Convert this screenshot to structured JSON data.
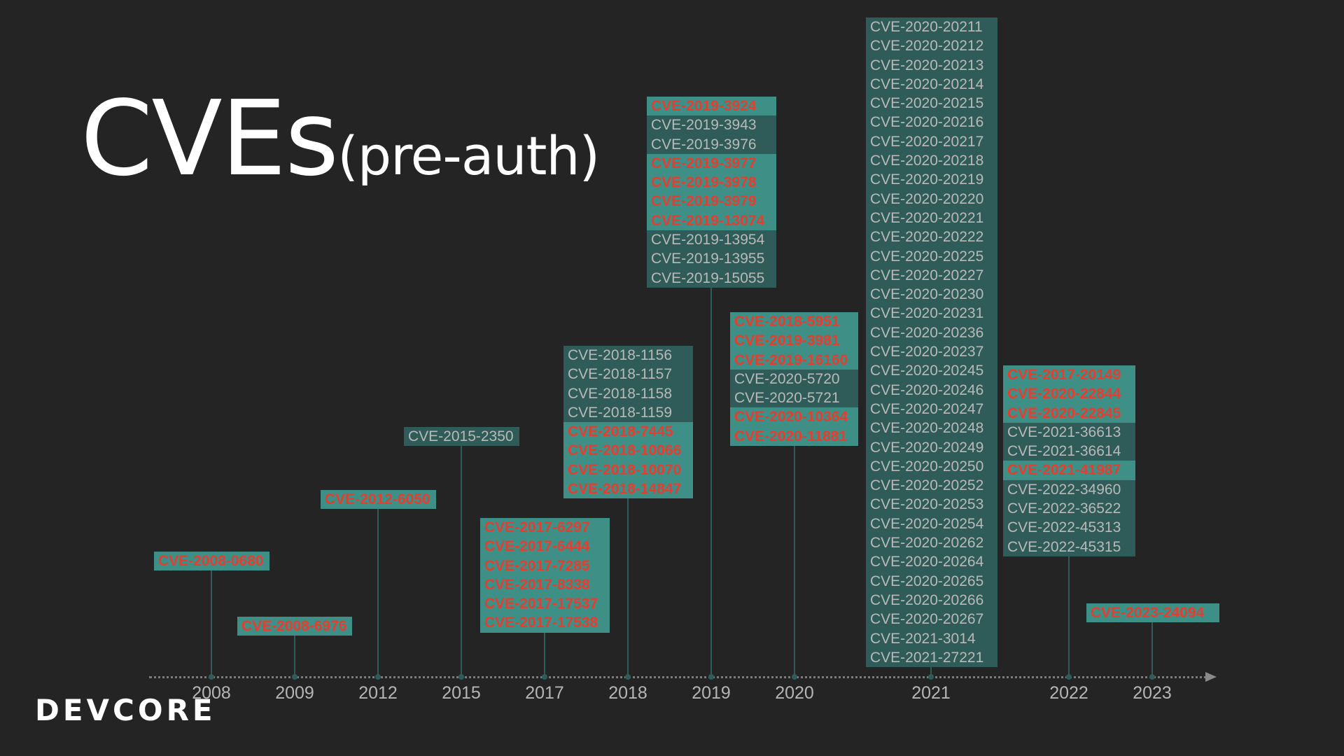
{
  "slide": {
    "title_main": "CVEs",
    "title_sub": "(pre-auth)",
    "logo": "DEVCORE",
    "accent_color": "#e53e30",
    "box_color": "#2f5c58",
    "highlight_box_color": "#3e9086"
  },
  "timeline": [
    {
      "year": "2008",
      "cves": [
        {
          "id": "CVE-2008-0680",
          "critical": true
        }
      ]
    },
    {
      "year": "2009",
      "cves": [
        {
          "id": "CVE-2008-6976",
          "critical": true
        }
      ]
    },
    {
      "year": "2012",
      "cves": [
        {
          "id": "CVE-2012-6050",
          "critical": true
        }
      ]
    },
    {
      "year": "2015",
      "cves": [
        {
          "id": "CVE-2015-2350",
          "critical": false
        }
      ]
    },
    {
      "year": "2017",
      "cves": [
        {
          "id": "CVE-2017-6297",
          "critical": true
        },
        {
          "id": "CVE-2017-6444",
          "critical": true
        },
        {
          "id": "CVE-2017-7285",
          "critical": true
        },
        {
          "id": "CVE-2017-8338",
          "critical": true
        },
        {
          "id": "CVE-2017-17537",
          "critical": true
        },
        {
          "id": "CVE-2017-17538",
          "critical": true
        }
      ]
    },
    {
      "year": "2018",
      "cves": [
        {
          "id": "CVE-2018-1156",
          "critical": false
        },
        {
          "id": "CVE-2018-1157",
          "critical": false
        },
        {
          "id": "CVE-2018-1158",
          "critical": false
        },
        {
          "id": "CVE-2018-1159",
          "critical": false
        },
        {
          "id": "CVE-2018-7445",
          "critical": true
        },
        {
          "id": "CVE-2018-10066",
          "critical": true
        },
        {
          "id": "CVE-2018-10070",
          "critical": true
        },
        {
          "id": "CVE-2018-14847",
          "critical": true
        }
      ]
    },
    {
      "year": "2019",
      "cves": [
        {
          "id": "CVE-2019-3924",
          "critical": true
        },
        {
          "id": "CVE-2019-3943",
          "critical": false
        },
        {
          "id": "CVE-2019-3976",
          "critical": false
        },
        {
          "id": "CVE-2019-3977",
          "critical": true
        },
        {
          "id": "CVE-2019-3978",
          "critical": true
        },
        {
          "id": "CVE-2019-3979",
          "critical": true
        },
        {
          "id": "CVE-2019-13074",
          "critical": true
        },
        {
          "id": "CVE-2019-13954",
          "critical": false
        },
        {
          "id": "CVE-2019-13955",
          "critical": false
        },
        {
          "id": "CVE-2019-15055",
          "critical": false
        }
      ]
    },
    {
      "year": "2020",
      "cves": [
        {
          "id": "CVE-2018-5951",
          "critical": true
        },
        {
          "id": "CVE-2019-3981",
          "critical": true
        },
        {
          "id": "CVE-2019-16160",
          "critical": true
        },
        {
          "id": "CVE-2020-5720",
          "critical": false
        },
        {
          "id": "CVE-2020-5721",
          "critical": false
        },
        {
          "id": "CVE-2020-10364",
          "critical": true
        },
        {
          "id": "CVE-2020-11881",
          "critical": true
        }
      ]
    },
    {
      "year": "2021",
      "cves": [
        {
          "id": "CVE-2020-20211",
          "critical": false
        },
        {
          "id": "CVE-2020-20212",
          "critical": false
        },
        {
          "id": "CVE-2020-20213",
          "critical": false
        },
        {
          "id": "CVE-2020-20214",
          "critical": false
        },
        {
          "id": "CVE-2020-20215",
          "critical": false
        },
        {
          "id": "CVE-2020-20216",
          "critical": false
        },
        {
          "id": "CVE-2020-20217",
          "critical": false
        },
        {
          "id": "CVE-2020-20218",
          "critical": false
        },
        {
          "id": "CVE-2020-20219",
          "critical": false
        },
        {
          "id": "CVE-2020-20220",
          "critical": false
        },
        {
          "id": "CVE-2020-20221",
          "critical": false
        },
        {
          "id": "CVE-2020-20222",
          "critical": false
        },
        {
          "id": "CVE-2020-20225",
          "critical": false
        },
        {
          "id": "CVE-2020-20227",
          "critical": false
        },
        {
          "id": "CVE-2020-20230",
          "critical": false
        },
        {
          "id": "CVE-2020-20231",
          "critical": false
        },
        {
          "id": "CVE-2020-20236",
          "critical": false
        },
        {
          "id": "CVE-2020-20237",
          "critical": false
        },
        {
          "id": "CVE-2020-20245",
          "critical": false
        },
        {
          "id": "CVE-2020-20246",
          "critical": false
        },
        {
          "id": "CVE-2020-20247",
          "critical": false
        },
        {
          "id": "CVE-2020-20248",
          "critical": false
        },
        {
          "id": "CVE-2020-20249",
          "critical": false
        },
        {
          "id": "CVE-2020-20250",
          "critical": false
        },
        {
          "id": "CVE-2020-20252",
          "critical": false
        },
        {
          "id": "CVE-2020-20253",
          "critical": false
        },
        {
          "id": "CVE-2020-20254",
          "critical": false
        },
        {
          "id": "CVE-2020-20262",
          "critical": false
        },
        {
          "id": "CVE-2020-20264",
          "critical": false
        },
        {
          "id": "CVE-2020-20265",
          "critical": false
        },
        {
          "id": "CVE-2020-20266",
          "critical": false
        },
        {
          "id": "CVE-2020-20267",
          "critical": false
        },
        {
          "id": "CVE-2021-3014",
          "critical": false
        },
        {
          "id": "CVE-2021-27221",
          "critical": false
        }
      ]
    },
    {
      "year": "2022",
      "cves": [
        {
          "id": "CVE-2017-20149",
          "critical": true
        },
        {
          "id": "CVE-2020-22844",
          "critical": true
        },
        {
          "id": "CVE-2020-22845",
          "critical": true
        },
        {
          "id": "CVE-2021-36613",
          "critical": false
        },
        {
          "id": "CVE-2021-36614",
          "critical": false
        },
        {
          "id": "CVE-2021-41987",
          "critical": true
        },
        {
          "id": "CVE-2022-34960",
          "critical": false
        },
        {
          "id": "CVE-2022-36522",
          "critical": false
        },
        {
          "id": "CVE-2022-45313",
          "critical": false
        },
        {
          "id": "CVE-2022-45315",
          "critical": false
        }
      ]
    },
    {
      "year": "2023",
      "cves": [
        {
          "id": "CVE-2023-24094",
          "critical": true
        }
      ]
    }
  ]
}
